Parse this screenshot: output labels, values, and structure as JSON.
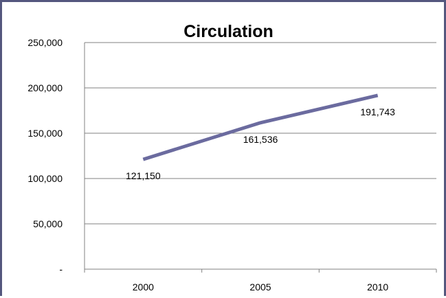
{
  "chart_data": {
    "type": "line",
    "title": "Circulation",
    "xlabel": "",
    "ylabel": "",
    "categories": [
      "2000",
      "2005",
      "2010"
    ],
    "series": [
      {
        "values": [
          121150,
          161536,
          191743
        ],
        "data_labels": [
          "121,150",
          "161,536",
          "191,743"
        ],
        "color": "#6b6b9f"
      }
    ],
    "ylim": [
      0,
      250000
    ],
    "y_ticks": [
      0,
      50000,
      100000,
      150000,
      200000,
      250000
    ],
    "y_tick_labels": [
      "-",
      "50,000",
      "100,000",
      "150,000",
      "200,000",
      "250,000"
    ],
    "grid": true,
    "legend": "none"
  },
  "colors": {
    "frame": "#54577e",
    "line": "#6b6b9f",
    "gridline": "#808080"
  }
}
